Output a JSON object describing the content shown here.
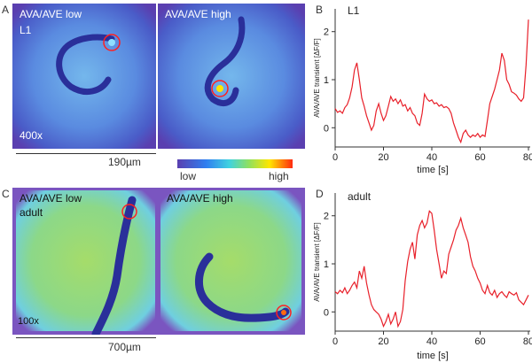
{
  "panels": {
    "A": {
      "letter": "A",
      "left_label": "AVA/AVE low",
      "right_label": "AVA/AVE high",
      "stage": "L1",
      "magnification": "400x",
      "scale_bar": "190µm"
    },
    "C": {
      "letter": "C",
      "left_label": "AVA/AVE low",
      "stage": "adult",
      "right_label": "AVA/AVE high",
      "magnification": "100x",
      "scale_bar": "700µm"
    },
    "B": {
      "letter": "B"
    },
    "D": {
      "letter": "D"
    }
  },
  "colorbar": {
    "low_label": "low",
    "high_label": "high",
    "colors": [
      "#5a3fb0",
      "#2f7ff0",
      "#3fd2e0",
      "#8fe060",
      "#ffe600",
      "#ff2a10"
    ]
  },
  "chart_data": [
    {
      "type": "line",
      "panel": "B",
      "title": "L1",
      "xlabel": "time [s]",
      "ylabel": "AVA/AVE transient [ΔF/F]",
      "xlim": [
        0,
        80
      ],
      "ylim": [
        -0.4,
        2.4
      ],
      "xticks": [
        0,
        20,
        40,
        60,
        80
      ],
      "yticks": [
        0,
        1,
        2
      ],
      "color": "#e8202a",
      "series": [
        {
          "name": "AVA/AVE transient",
          "x": [
            0,
            1,
            2,
            3,
            4,
            5,
            6,
            7,
            8,
            9,
            10,
            11,
            12,
            13,
            14,
            15,
            16,
            17,
            18,
            19,
            20,
            21,
            22,
            23,
            24,
            25,
            26,
            27,
            28,
            29,
            30,
            31,
            32,
            33,
            34,
            35,
            36,
            37,
            38,
            39,
            40,
            41,
            42,
            43,
            44,
            45,
            46,
            47,
            48,
            49,
            50,
            51,
            52,
            53,
            54,
            55,
            56,
            57,
            58,
            59,
            60,
            61,
            62,
            63,
            64,
            65,
            66,
            67,
            68,
            69,
            70,
            71,
            72,
            73,
            74,
            75,
            76,
            77,
            78,
            79,
            80
          ],
          "values": [
            0.4,
            0.32,
            0.35,
            0.3,
            0.42,
            0.48,
            0.62,
            0.85,
            1.2,
            1.35,
            1.0,
            0.62,
            0.45,
            0.25,
            0.1,
            -0.05,
            0.05,
            0.35,
            0.5,
            0.3,
            0.15,
            0.25,
            0.45,
            0.65,
            0.55,
            0.6,
            0.5,
            0.58,
            0.45,
            0.48,
            0.35,
            0.42,
            0.3,
            0.25,
            0.1,
            0.05,
            0.3,
            0.7,
            0.6,
            0.55,
            0.58,
            0.5,
            0.52,
            0.45,
            0.48,
            0.42,
            0.44,
            0.4,
            0.3,
            0.1,
            -0.05,
            -0.2,
            -0.3,
            -0.12,
            -0.05,
            -0.15,
            -0.2,
            -0.15,
            -0.18,
            -0.12,
            -0.2,
            -0.15,
            -0.18,
            0.15,
            0.5,
            0.65,
            0.8,
            1.0,
            1.2,
            1.55,
            1.4,
            1.0,
            0.9,
            0.75,
            0.72,
            0.68,
            0.6,
            0.55,
            0.62,
            1.3,
            2.25
          ]
        }
      ]
    },
    {
      "type": "line",
      "panel": "D",
      "title": "adult",
      "xlabel": "time [s]",
      "ylabel": "AVA/AVE transient [ΔF/F]",
      "xlim": [
        0,
        80
      ],
      "ylim": [
        -0.4,
        2.4
      ],
      "xticks": [
        0,
        20,
        40,
        60,
        80
      ],
      "yticks": [
        0,
        1,
        2
      ],
      "color": "#e8202a",
      "series": [
        {
          "name": "AVA/AVE transient",
          "x": [
            0,
            1,
            2,
            3,
            4,
            5,
            6,
            7,
            8,
            9,
            10,
            11,
            12,
            13,
            14,
            15,
            16,
            17,
            18,
            19,
            20,
            21,
            22,
            23,
            24,
            25,
            26,
            27,
            28,
            29,
            30,
            31,
            32,
            33,
            34,
            35,
            36,
            37,
            38,
            39,
            40,
            41,
            42,
            43,
            44,
            45,
            46,
            47,
            48,
            49,
            50,
            51,
            52,
            53,
            54,
            55,
            56,
            57,
            58,
            59,
            60,
            61,
            62,
            63,
            64,
            65,
            66,
            67,
            68,
            69,
            70,
            71,
            72,
            73,
            74,
            75,
            76,
            77,
            78,
            79,
            80
          ],
          "values": [
            0.42,
            0.38,
            0.45,
            0.4,
            0.5,
            0.38,
            0.45,
            0.55,
            0.62,
            0.5,
            0.85,
            0.7,
            0.95,
            0.6,
            0.35,
            0.15,
            0.05,
            0.0,
            -0.05,
            -0.15,
            -0.3,
            -0.2,
            -0.05,
            -0.25,
            -0.15,
            0.0,
            -0.3,
            -0.2,
            0.05,
            0.65,
            1.05,
            1.3,
            1.45,
            1.1,
            1.6,
            1.8,
            1.9,
            1.75,
            1.85,
            2.1,
            2.05,
            1.7,
            1.3,
            1.0,
            0.7,
            0.85,
            0.8,
            1.2,
            1.35,
            1.5,
            1.7,
            1.8,
            1.95,
            1.75,
            1.6,
            1.45,
            1.15,
            0.95,
            0.85,
            0.7,
            0.6,
            0.45,
            0.38,
            0.55,
            0.4,
            0.35,
            0.45,
            0.3,
            0.38,
            0.42,
            0.35,
            0.3,
            0.42,
            0.38,
            0.35,
            0.4,
            0.25,
            0.2,
            0.15,
            0.25,
            0.35
          ]
        }
      ]
    }
  ]
}
